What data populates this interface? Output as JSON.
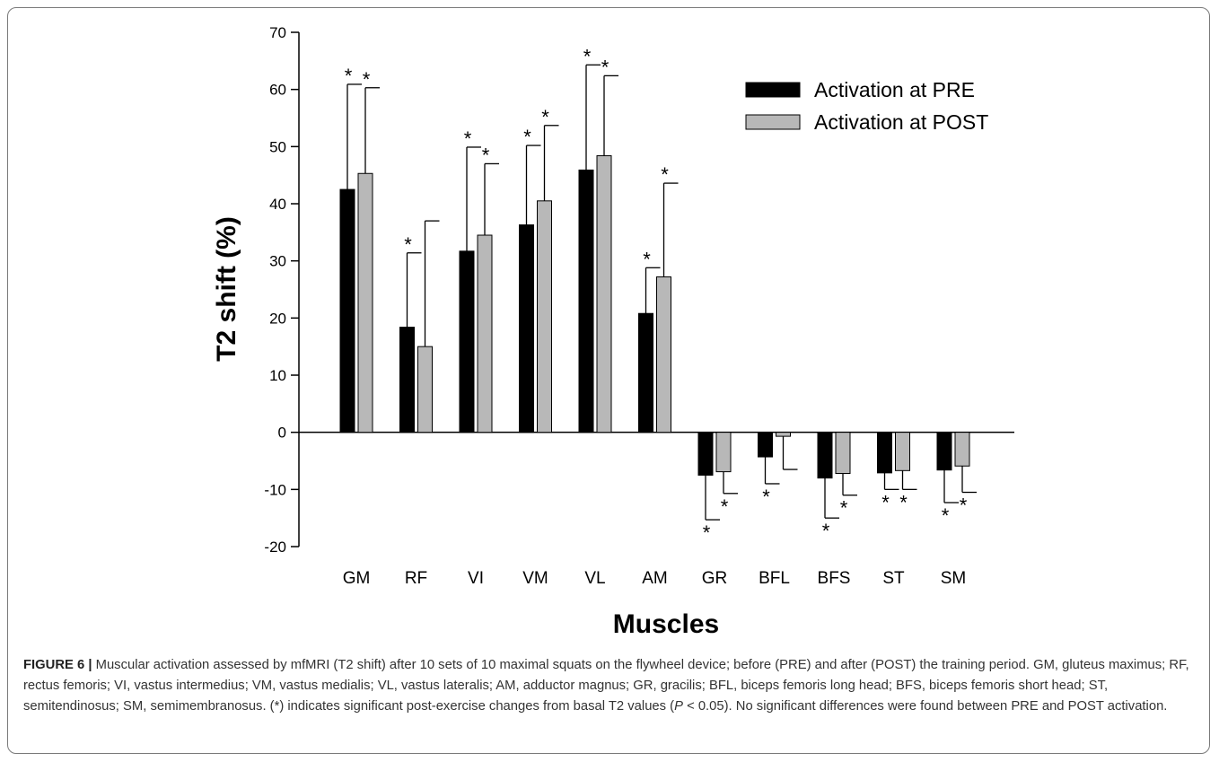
{
  "chart_data": {
    "type": "bar",
    "categories": [
      "GM",
      "RF",
      "VI",
      "VM",
      "VL",
      "AM",
      "GR",
      "BFL",
      "BFS",
      "ST",
      "SM"
    ],
    "series": [
      {
        "name": "Activation at PRE",
        "color": "#000000",
        "values": [
          42.5,
          18.4,
          31.7,
          36.3,
          45.9,
          20.8,
          -7.5,
          -4.3,
          -8.0,
          -7.1,
          -6.6
        ],
        "error": [
          18.4,
          13.0,
          18.2,
          13.9,
          18.4,
          8.0,
          7.8,
          4.7,
          7.0,
          2.9,
          5.7
        ],
        "significant": [
          true,
          true,
          true,
          true,
          true,
          true,
          true,
          true,
          true,
          true,
          true
        ]
      },
      {
        "name": "Activation at POST",
        "color": "#b8b8b8",
        "values": [
          45.3,
          15.0,
          34.5,
          40.5,
          48.4,
          27.2,
          -6.9,
          -0.7,
          -7.2,
          -6.7,
          -5.9
        ],
        "error": [
          15.0,
          22.0,
          12.5,
          13.2,
          14.0,
          16.4,
          3.8,
          5.8,
          3.8,
          3.3,
          4.6
        ],
        "significant": [
          true,
          false,
          true,
          true,
          true,
          true,
          true,
          false,
          true,
          true,
          true
        ]
      }
    ],
    "significance_marker": "*",
    "ylabel": "T2 shift (%)",
    "xlabel": "Muscles",
    "ylim": [
      -20,
      70
    ],
    "yticks": [
      -20,
      -10,
      0,
      10,
      20,
      30,
      40,
      50,
      60,
      70
    ],
    "legend_position": "top-right",
    "grid": false
  },
  "caption": {
    "label": "FIGURE 6 |",
    "text_before_p": "Muscular activation assessed by mfMRI (T2 shift) after 10 sets of 10 maximal squats on the flywheel device; before (PRE) and after (POST) the training period. GM, gluteus maximus; RF, rectus femoris; VI, vastus intermedius; VM, vastus medialis; VL, vastus lateralis; AM, adductor magnus; GR, gracilis; BFL, biceps femoris long head; BFS, biceps femoris short head; ST, semitendinosus; SM, semimembranosus. (*) indicates significant post-exercise changes from basal T2 values (",
    "p_symbol": "P",
    "text_after_p": " < 0.05). No significant differences were found between PRE and POST activation."
  }
}
